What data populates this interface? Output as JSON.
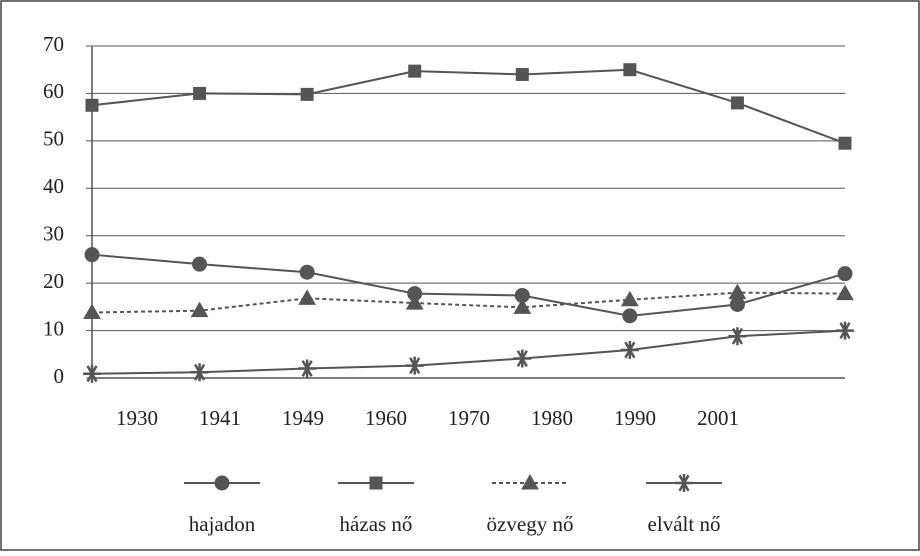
{
  "chart_data": {
    "type": "line",
    "categories": [
      "1930",
      "1941",
      "1949",
      "1960",
      "1970",
      "1980",
      "1990",
      "2001"
    ],
    "series": [
      {
        "name": "hajadon",
        "color": "#555555",
        "marker": "circle",
        "dashed": false,
        "values": [
          26,
          24,
          22.3,
          17.8,
          17.4,
          13.1,
          15.5,
          22
        ]
      },
      {
        "name": "házas nő",
        "color": "#555555",
        "marker": "square",
        "dashed": false,
        "values": [
          57.5,
          60,
          59.8,
          64.7,
          64,
          65,
          58,
          49.5
        ]
      },
      {
        "name": "özvegy nő",
        "color": "#555555",
        "marker": "triangle",
        "dashed": true,
        "values": [
          13.8,
          14.2,
          16.8,
          15.8,
          14.9,
          16.5,
          18,
          17.8
        ]
      },
      {
        "name": "elvált nő",
        "color": "#555555",
        "marker": "star",
        "dashed": false,
        "values": [
          0.9,
          1.2,
          2,
          2.6,
          4.1,
          5.9,
          8.8,
          10
        ]
      }
    ],
    "ylim": [
      0,
      70
    ],
    "yticks": [
      0,
      10,
      20,
      30,
      40,
      50,
      60,
      70
    ],
    "grid": true,
    "legend": "bottom"
  }
}
